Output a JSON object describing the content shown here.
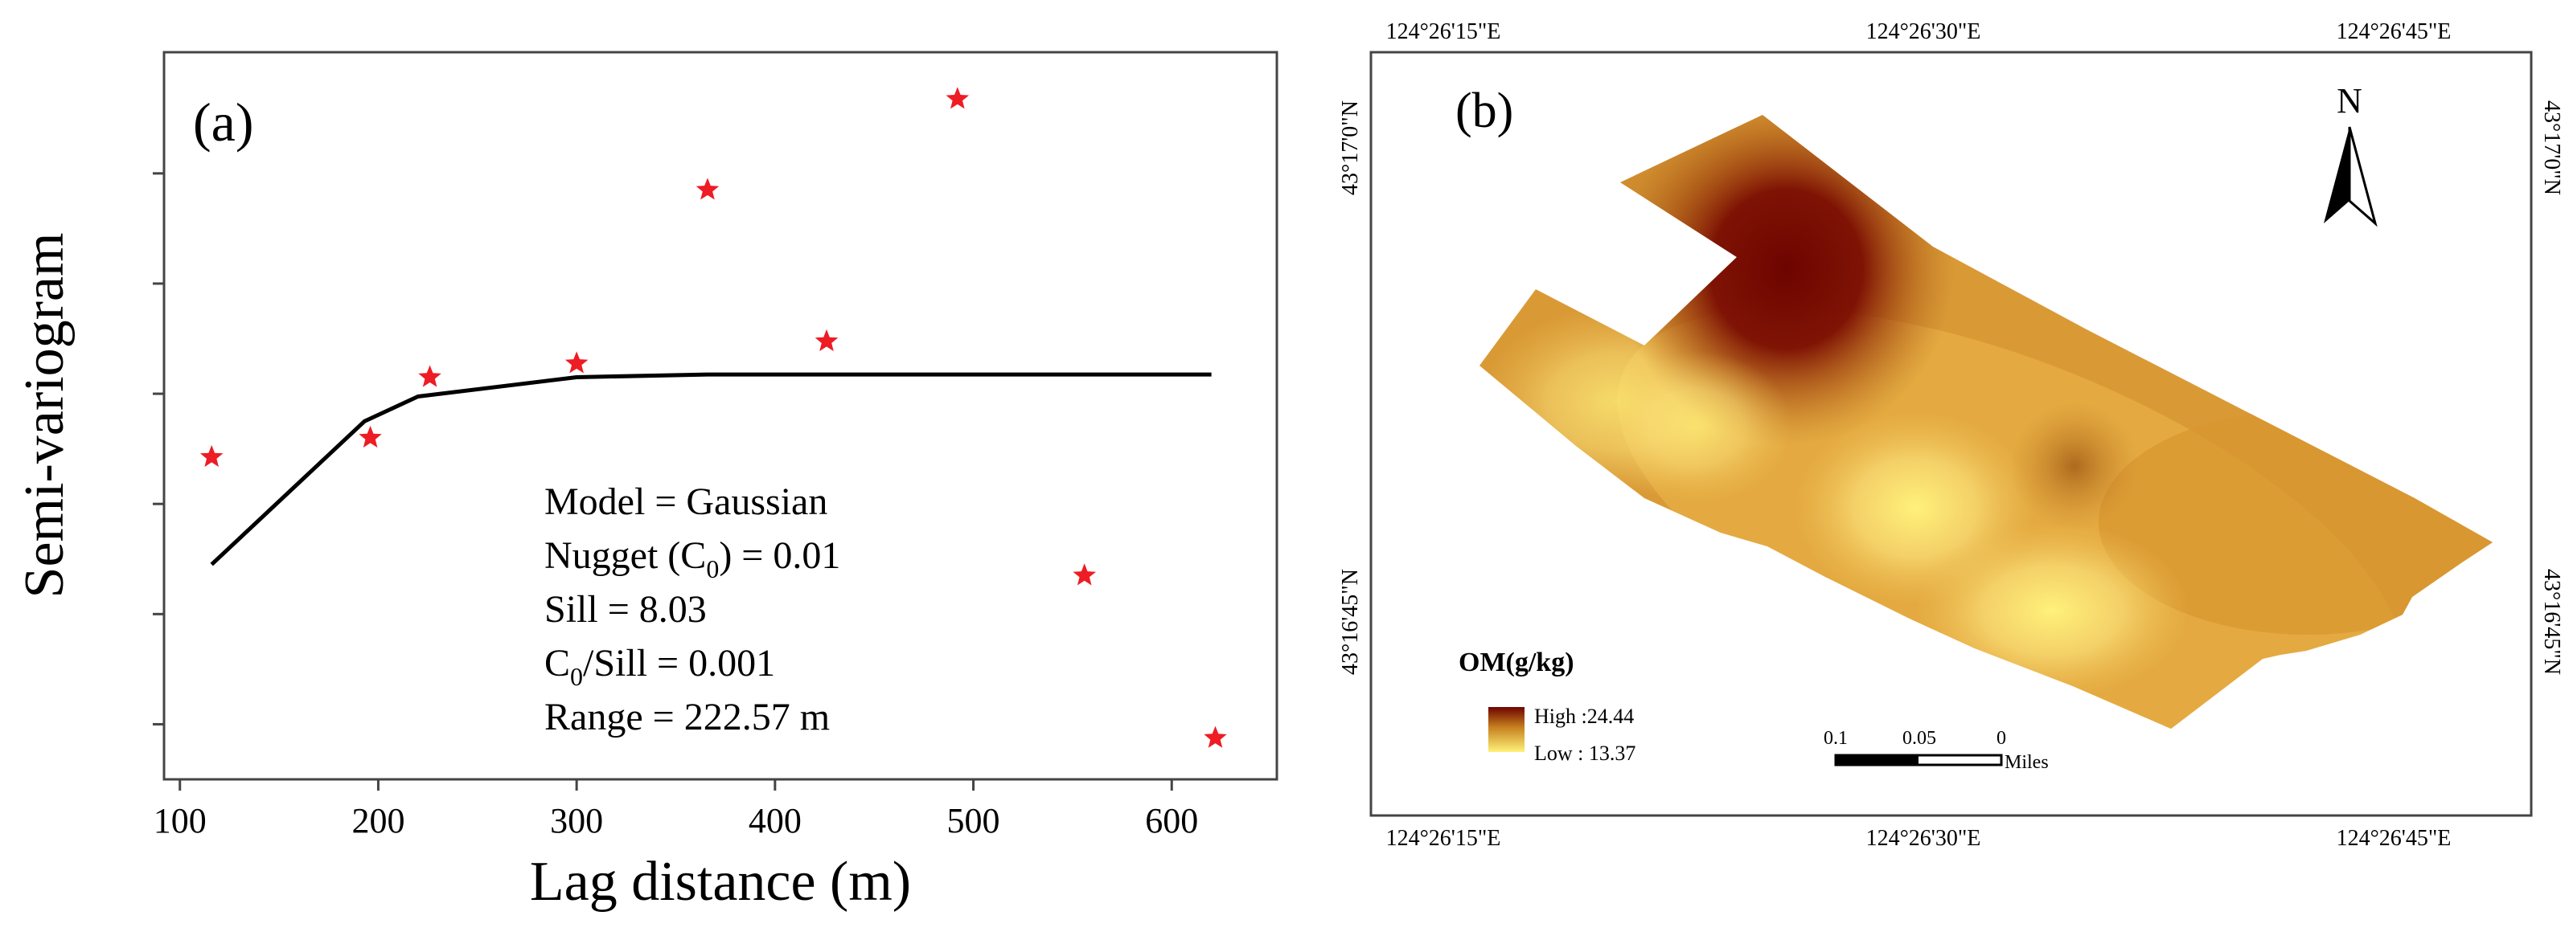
{
  "chart_data": [
    {
      "type": "scatter",
      "panel_label": "(a)",
      "xlabel": "Lag distance (m)",
      "ylabel": "Semi-variogram",
      "xlim": [
        92,
        653
      ],
      "ylim": [
        0,
        13.2
      ],
      "x_ticks": [
        100,
        200,
        300,
        400,
        500,
        600
      ],
      "x_tick_labels": [
        "100",
        "200",
        "300",
        "400",
        "500",
        "600"
      ],
      "y_ticks": [
        1,
        3,
        5,
        7,
        9,
        11
      ],
      "series": [
        {
          "name": "experimental",
          "marker": "star",
          "color": "#ee1c24",
          "points": [
            [
              116,
              5.85
            ],
            [
              196,
              6.2
            ],
            [
              226,
              7.3
            ],
            [
              300,
              7.55
            ],
            [
              366,
              10.7
            ],
            [
              426,
              7.95
            ],
            [
              492,
              12.35
            ],
            [
              556,
              3.7
            ],
            [
              622,
              0.75
            ]
          ]
        },
        {
          "name": "model",
          "line": true,
          "color": "#000000",
          "points": [
            [
              116,
              3.9
            ],
            [
              193,
              6.5
            ],
            [
              220,
              6.95
            ],
            [
              300,
              7.3
            ],
            [
              366,
              7.35
            ],
            [
              620,
              7.35
            ]
          ]
        }
      ],
      "annotations": [
        {
          "name": "model",
          "parts": [
            "Model = Gaussian"
          ]
        },
        {
          "name": "nugget",
          "parts": [
            "Nugget (C",
            "0",
            ") = 0.01"
          ]
        },
        {
          "name": "sill",
          "parts": [
            "Sill  = 8.03"
          ]
        },
        {
          "name": "ratio",
          "parts": [
            "C",
            "0",
            "/Sill = 0.001"
          ]
        },
        {
          "name": "range",
          "parts": [
            "Range = 222.57 m"
          ]
        }
      ]
    },
    {
      "type": "heatmap",
      "panel_label": "(b)",
      "top_labels": [
        "124°26'15\"E",
        "124°26'30\"E",
        "124°26'45\"E"
      ],
      "bottom_labels": [
        "124°26'15\"E",
        "124°26'30\"E",
        "124°26'45\"E"
      ],
      "left_labels": [
        "43°17'0\"N",
        "43°16'45\"N"
      ],
      "right_labels": [
        "43°17'0\"N",
        "43°16'45\"N"
      ],
      "north_label": "N",
      "legend": {
        "title": "OM(g/kg)",
        "high_label": "High :24.44",
        "low_label": "Low : 13.37",
        "high_value": 24.44,
        "low_value": 13.37,
        "high_color": "#6e0400",
        "low_color": "#fff27a"
      },
      "scale_bar": {
        "labels": [
          "0.1",
          "0.05",
          "0"
        ],
        "unit": "Miles"
      },
      "hotspots": [
        {
          "value": 24.44,
          "kind": "high"
        },
        {
          "value": 15.2,
          "kind": "low"
        },
        {
          "value": 14.5,
          "kind": "low"
        },
        {
          "value": 13.37,
          "kind": "low"
        },
        {
          "value": 18.5,
          "kind": "mid"
        }
      ]
    }
  ]
}
